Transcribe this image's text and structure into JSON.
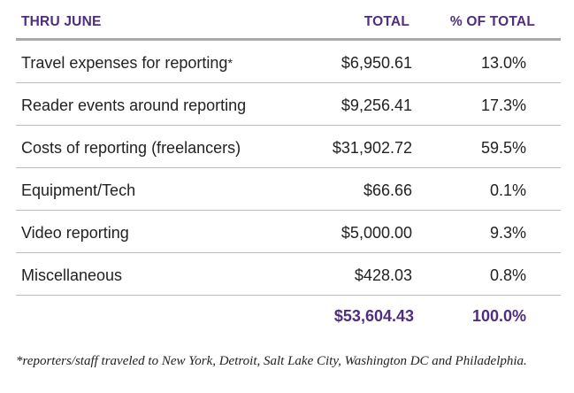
{
  "header": {
    "col_label": "THRU JUNE",
    "col_total": "TOTAL",
    "col_percent": "% OF TOTAL"
  },
  "rows": [
    {
      "label": "Travel expenses for reporting",
      "mark": "*",
      "total": "$6,950.61",
      "percent": "13.0%"
    },
    {
      "label": "Reader events around reporting",
      "total": "$9,256.41",
      "percent": "17.3%"
    },
    {
      "label": "Costs of reporting (freelancers)",
      "total": "$31,902.72",
      "percent": "59.5%"
    },
    {
      "label": "Equipment/Tech",
      "total": "$66.66",
      "percent": "0.1%"
    },
    {
      "label": "Video reporting",
      "total": "$5,000.00",
      "percent": "9.3%"
    },
    {
      "label": "Miscellaneous",
      "total": "$428.03",
      "percent": "0.8%"
    }
  ],
  "summary": {
    "total": "$53,604.43",
    "percent": "100.0%"
  },
  "footnote": "*reporters/staff traveled to New York, Detroit, Salt Lake City, Washington DC and Philadelphia.",
  "colors": {
    "accent": "#4f2d7f",
    "header_rule": "#a9a9a9",
    "row_rule": "#bdbdbd"
  }
}
